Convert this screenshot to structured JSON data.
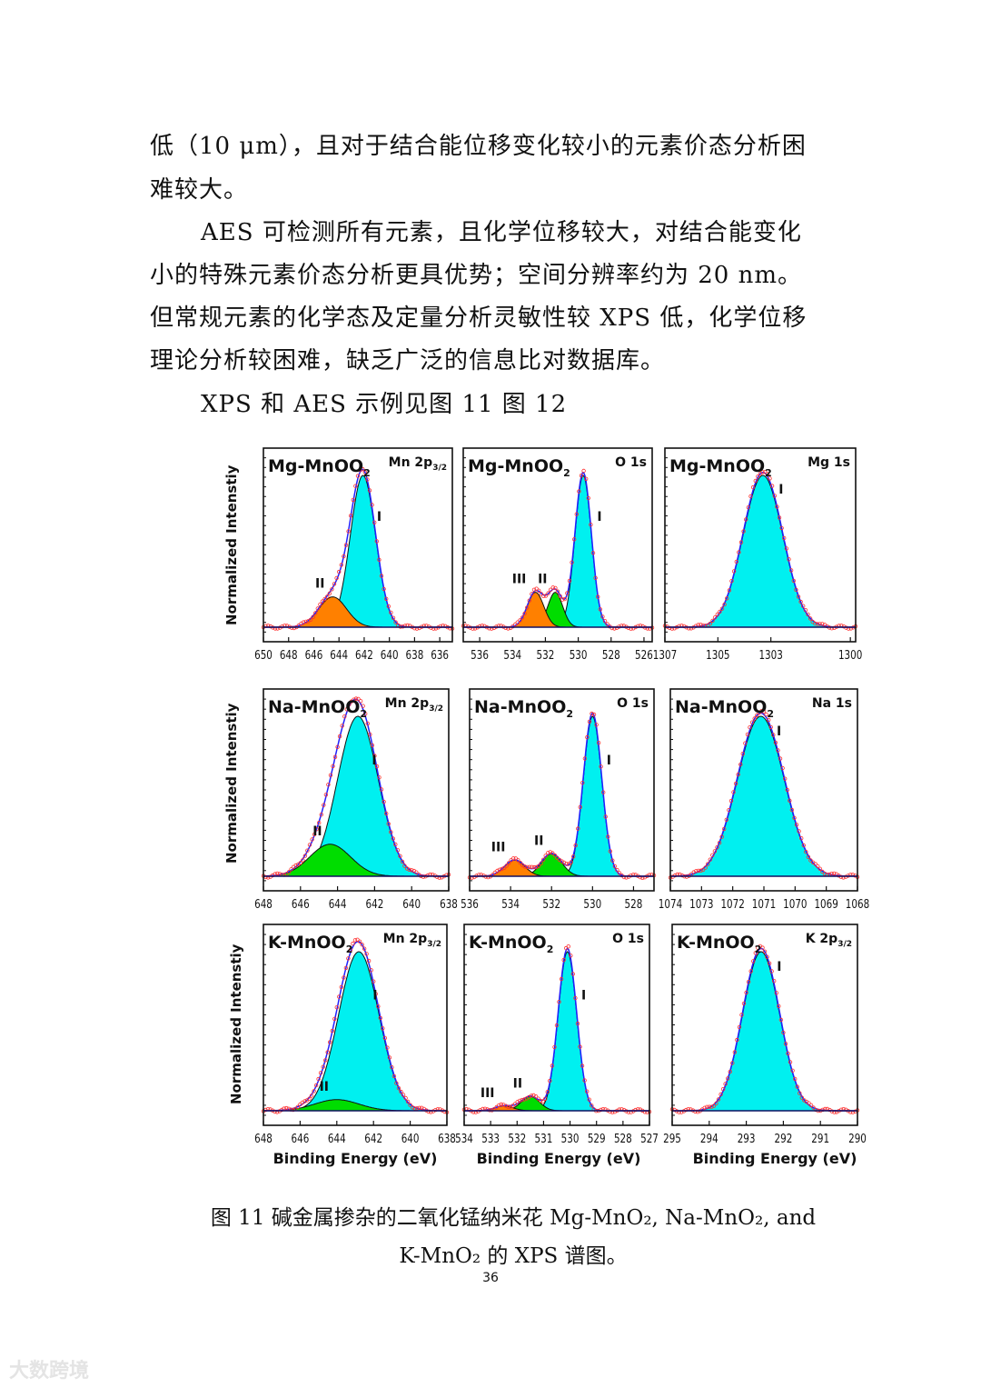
{
  "body_text": {
    "lines": [
      "低（10 μm），且对于结合能位移变化较小的元素价态分析困",
      "难较大。",
      "AES 可检测所有元素，且化学位移较大，对结合能变化",
      "小的特殊元素价态分析更具优势；空间分辨率约为 20 nm。",
      "但常规元素的化学态及定量分析灵敏性较 XPS 低，化学位移",
      "理论分析较困难，缺乏广泛的信息比对数据库。",
      "XPS 和 AES 示例见图 11 图 12"
    ]
  },
  "figure": {
    "ylabel": "Normalized Intenstiy",
    "xlabel": "Binding Energy (eV)",
    "colors": {
      "peak_I": "#00f0f0",
      "peak_orange": "#ff8000",
      "peak_green": "#00dd00",
      "envelope": "#2020ff",
      "data_points": "#ff3030",
      "baseline": "#101060"
    }
  },
  "chart_data": [
    {
      "type": "area",
      "sample": "Mg-MnO",
      "region": "Mn 2p",
      "region_sub": "3/2",
      "xlim": [
        650,
        635
      ],
      "ticks": [
        650,
        648,
        646,
        644,
        642,
        640,
        638,
        636
      ],
      "peaks": [
        {
          "label": "I",
          "center": 642.1,
          "height": 1.0,
          "sigma": 1.0,
          "color": "peak_I"
        },
        {
          "label": "II",
          "center": 644.5,
          "height": 0.2,
          "sigma": 1.1,
          "color": "peak_orange"
        }
      ]
    },
    {
      "type": "area",
      "sample": "Mg-MnO",
      "region": "O 1s",
      "region_sub": "",
      "xlim": [
        537,
        525.5
      ],
      "ticks": [
        536,
        534,
        532,
        530,
        528,
        526
      ],
      "peaks": [
        {
          "label": "I",
          "center": 529.7,
          "height": 1.0,
          "sigma": 0.5,
          "color": "peak_I"
        },
        {
          "label": "II",
          "center": 531.4,
          "height": 0.23,
          "sigma": 0.45,
          "color": "peak_green"
        },
        {
          "label": "III",
          "center": 532.6,
          "height": 0.23,
          "sigma": 0.5,
          "color": "peak_orange"
        }
      ]
    },
    {
      "type": "area",
      "sample": "Mg-MnO",
      "region": "Mg 1s",
      "region_sub": "",
      "xlim": [
        1307,
        1299.8
      ],
      "ticks": [
        1307,
        1305,
        1303,
        1300
      ],
      "peaks": [
        {
          "label": "I",
          "center": 1303.3,
          "height": 1.0,
          "sigma": 0.75,
          "color": "peak_I"
        }
      ]
    },
    {
      "type": "area",
      "sample": "Na-MnO",
      "region": "Mn 2p",
      "region_sub": "3/2",
      "xlim": [
        648,
        638
      ],
      "ticks": [
        648,
        646,
        644,
        642,
        640,
        638
      ],
      "peaks": [
        {
          "label": "I",
          "center": 642.9,
          "height": 1.0,
          "sigma": 1.1,
          "color": "peak_I"
        },
        {
          "label": "II",
          "center": 644.4,
          "height": 0.2,
          "sigma": 1.1,
          "color": "peak_green"
        }
      ]
    },
    {
      "type": "area",
      "sample": "Na-MnO",
      "region": "O 1s",
      "region_sub": "",
      "xlim": [
        536,
        527
      ],
      "ticks": [
        536,
        534,
        532,
        530,
        528
      ],
      "peaks": [
        {
          "label": "I",
          "center": 530.0,
          "height": 1.0,
          "sigma": 0.45,
          "color": "peak_I"
        },
        {
          "label": "II",
          "center": 532.0,
          "height": 0.14,
          "sigma": 0.5,
          "color": "peak_green"
        },
        {
          "label": "III",
          "center": 533.8,
          "height": 0.1,
          "sigma": 0.5,
          "color": "peak_orange"
        }
      ]
    },
    {
      "type": "area",
      "sample": "Na-MnO",
      "region": "Na 1s",
      "region_sub": "",
      "xlim": [
        1074,
        1068
      ],
      "ticks": [
        1074,
        1073,
        1072,
        1071,
        1070,
        1069,
        1068
      ],
      "peaks": [
        {
          "label": "I",
          "center": 1071.1,
          "height": 1.0,
          "sigma": 0.75,
          "color": "peak_I"
        }
      ]
    },
    {
      "type": "area",
      "sample": "K-MnO",
      "region": "Mn 2p",
      "region_sub": "3/2",
      "xlim": [
        648,
        638
      ],
      "ticks": [
        648,
        646,
        644,
        642,
        640,
        638
      ],
      "peaks": [
        {
          "label": "I",
          "center": 642.8,
          "height": 1.0,
          "sigma": 1.1,
          "color": "peak_I"
        },
        {
          "label": "II",
          "center": 644.0,
          "height": 0.07,
          "sigma": 1.2,
          "color": "peak_green"
        }
      ]
    },
    {
      "type": "area",
      "sample": "K-MnO",
      "region": "O 1s",
      "region_sub": "",
      "xlim": [
        534,
        527
      ],
      "ticks": [
        534,
        533,
        532,
        531,
        530,
        529,
        528,
        527
      ],
      "peaks": [
        {
          "label": "I",
          "center": 530.1,
          "height": 1.0,
          "sigma": 0.35,
          "color": "peak_I"
        },
        {
          "label": "II",
          "center": 531.5,
          "height": 0.09,
          "sigma": 0.35,
          "color": "peak_green"
        },
        {
          "label": "III",
          "center": 532.5,
          "height": 0.03,
          "sigma": 0.35,
          "color": "peak_orange"
        }
      ]
    },
    {
      "type": "area",
      "sample": "K-MnO",
      "region": "K 2p",
      "region_sub": "3/2",
      "xlim": [
        295,
        290
      ],
      "ticks": [
        295,
        294,
        293,
        292,
        291,
        290
      ],
      "peaks": [
        {
          "label": "I",
          "center": 292.6,
          "height": 1.0,
          "sigma": 0.5,
          "color": "peak_I"
        }
      ]
    }
  ],
  "caption": {
    "line1": "图 11 碱金属掺杂的二氧化锰纳米花 Mg-MnO₂, Na-MnO₂, and",
    "line2": "K-MnO₂ 的 XPS 谱图。"
  },
  "page_number": "36",
  "watermark": "大数跨境"
}
